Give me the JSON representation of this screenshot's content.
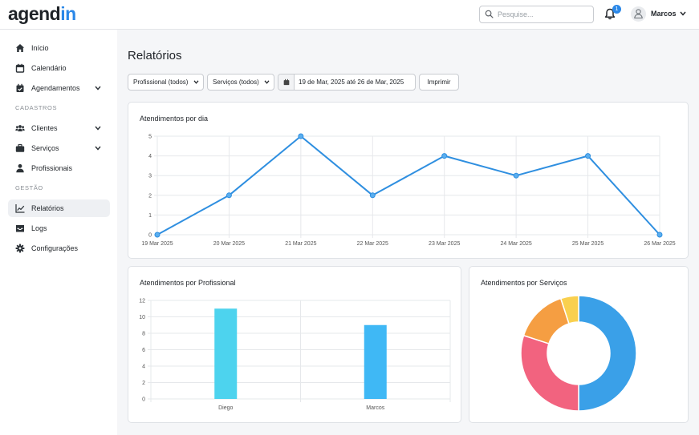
{
  "app": {
    "logo_main": "agend",
    "logo_accent": "in",
    "accent_color": "#2b88e8"
  },
  "header": {
    "search_placeholder": "Pesquise...",
    "notification_count": "1",
    "user_name": "Marcos"
  },
  "sidebar": {
    "items": [
      {
        "label": "Início",
        "icon": "home-icon"
      },
      {
        "label": "Calendário",
        "icon": "calendar-icon"
      },
      {
        "label": "Agendamentos",
        "icon": "calendar-check-icon",
        "expandable": true
      }
    ],
    "section_cadastros": "CADASTROS",
    "cadastros_items": [
      {
        "label": "Clientes",
        "icon": "users-icon",
        "expandable": true
      },
      {
        "label": "Serviços",
        "icon": "briefcase-icon",
        "expandable": true
      },
      {
        "label": "Profissionais",
        "icon": "user-tie-icon"
      }
    ],
    "section_gestao": "GESTÃO",
    "gestao_items": [
      {
        "label": "Relatórios",
        "icon": "chart-line-icon",
        "active": true
      },
      {
        "label": "Logs",
        "icon": "inbox-icon"
      },
      {
        "label": "Configurações",
        "icon": "gear-icon"
      }
    ]
  },
  "main": {
    "title": "Relatórios",
    "filters": {
      "professional": "Profissional (todos)",
      "services": "Serviços (todos)",
      "date_range": "19 de Mar, 2025 até 26 de Mar, 2025",
      "print_label": "Imprimir"
    }
  },
  "chart_data": [
    {
      "type": "line",
      "title": "Atendimentos por dia",
      "categories": [
        "19 Mar 2025",
        "20 Mar 2025",
        "21 Mar 2025",
        "22 Mar 2025",
        "23 Mar 2025",
        "24 Mar 2025",
        "25 Mar 2025",
        "26 Mar 2025"
      ],
      "values": [
        0,
        2,
        5,
        2,
        4,
        3,
        4,
        0
      ],
      "ylim": [
        0,
        5
      ],
      "yticks": [
        0,
        1,
        2,
        3,
        4,
        5
      ],
      "grid": true,
      "color": "#2f8fe0"
    },
    {
      "type": "bar",
      "title": "Atendimentos por Profissional",
      "categories": [
        "Diego",
        "Marcos"
      ],
      "values": [
        11,
        9
      ],
      "ylim": [
        0,
        12
      ],
      "yticks": [
        0,
        2,
        4,
        6,
        8,
        10,
        12
      ],
      "grid": true,
      "colors": [
        "#4dd3ee",
        "#3fb8f5"
      ]
    },
    {
      "type": "pie",
      "title": "Atendimentos por Serviços",
      "donut": true,
      "values": [
        50,
        30,
        15,
        5
      ],
      "colors": [
        "#3aa0e8",
        "#f2637f",
        "#f59e42",
        "#f9d04f"
      ]
    }
  ]
}
